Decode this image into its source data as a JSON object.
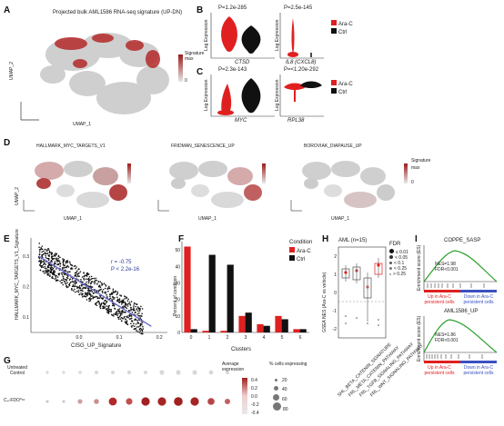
{
  "panels": {
    "A": {
      "letter": "A",
      "title": "Projected bulk AML1586 RNA-seq signature (UP-DN)",
      "xlabel": "UMAP_1",
      "ylabel": "UMAP_2",
      "legend_title": "Signature",
      "legend_max": "max",
      "legend_min": "0"
    },
    "B": {
      "letter": "B",
      "left": {
        "p": "P=1.2e-285",
        "gene": "CTSD",
        "ylabel": "Log Expression"
      },
      "right": {
        "p": "P=2.5e-145",
        "gene": "IL8 (CXCL8)",
        "ylabel": "Log Expression"
      },
      "legend": [
        "Ara-C",
        "Ctrl"
      ]
    },
    "C": {
      "letter": "C",
      "left": {
        "p": "P=2.3e-143",
        "gene": "MYC",
        "ylabel": "Log Expression"
      },
      "right": {
        "p": "P=<1.20e-292",
        "gene": "RPL38",
        "ylabel": "Log Expression"
      },
      "legend": [
        "Ara-C",
        "Ctrl"
      ]
    },
    "D": {
      "letter": "D",
      "maps": [
        "HALLMARK_MYC_TARGETS_V1",
        "FRIDMAN_SENESCENCE_UP",
        "BOROVIAK_DIAPAUSE_UP"
      ],
      "xlabel": "UMAP_1",
      "ylabel": "UMAP_2",
      "legend_title": "Signature",
      "legend_max": "max",
      "legend_min": "0"
    },
    "E": {
      "letter": "E",
      "r": "r = -0.75",
      "p": "P < 2.2e-16",
      "xlabel": "CISG_UP_Signature",
      "ylabel": "HALLMARK_MYC_TARGETS_V1_Signature"
    },
    "F": {
      "letter": "F",
      "xlabel": "Clusters",
      "ylabel": "Percent of condition",
      "legend_title": "Condition"
    },
    "H": {
      "letter": "H",
      "subtitle": "AML (n=15)",
      "ylabel": "GSEA NES (Ara-C vs vehicle)",
      "fdr_title": "FDR",
      "fdr_levels": [
        "≤ 0.01",
        "< 0.05",
        "< 0.1",
        "< 0.25",
        "> 0.25"
      ],
      "categories": [
        "SHL_BETA_CATENIN_SIGNATURE",
        "FRL_META_CATENIN_PATHWAY",
        "FRL_TGFB_SIGNALING_PATHWAY",
        "FRL_WNT_SIGNALING_PATHWAY"
      ]
    },
    "I": {
      "letter": "I",
      "top": {
        "title": "COPPE_SASP",
        "nes": "NES=1.98",
        "fdr": "FDR<0.001",
        "left_label": "Up in Ara-C persistent cells",
        "right_label": "Down in Ara-C persistent cells",
        "ylabel": "Enrichment score (ES)"
      },
      "bottom": {
        "title": "AML1586_UP",
        "nes": "NES=1.86",
        "fdr": "FDR<0.001",
        "left_label": "Up in Ara-C persistent cells",
        "right_label": "Down in Ara-C persistent cells",
        "ylabel": "Enrichment score (ES)"
      }
    },
    "G": {
      "letter": "G",
      "rows": [
        "Untreated Control",
        "C₄-FDO⁰ᶜᶜ"
      ],
      "avg_title": "Average expression",
      "avg_ticks": [
        "0.4",
        "0.2",
        "0.0",
        "-0.2",
        "-0.4"
      ],
      "pct_title": "% cells expressing",
      "pct_ticks": [
        "20",
        "40",
        "60",
        "80"
      ]
    }
  },
  "colors": {
    "arac": "#e02020",
    "ctrl": "#111111",
    "signature_high": "#9c1b1b",
    "signature_low": "#e8e8e8",
    "fit_line": "#6a6ac8"
  },
  "chart_data": [
    {
      "panel": "F",
      "type": "bar",
      "categories": [
        "0",
        "1",
        "2",
        "3",
        "4",
        "5",
        "6"
      ],
      "series": [
        {
          "name": "Ara-C",
          "values": [
            52,
            1,
            1,
            10,
            5,
            10,
            2
          ]
        },
        {
          "name": "Ctrl",
          "values": [
            2,
            47,
            41,
            12,
            4,
            8,
            2
          ]
        }
      ],
      "xlabel": "Clusters",
      "ylabel": "Percent of condition",
      "yticks": [
        "0",
        "10",
        "20",
        "30",
        "40",
        "50"
      ],
      "ylim": [
        0,
        55
      ],
      "legend": "top-right"
    },
    {
      "panel": "E",
      "type": "scatter",
      "xticks": [
        "0.0",
        "0.1",
        "0.2"
      ],
      "yticks": [
        "0.1",
        "0.2",
        "0.3"
      ],
      "xlim": [
        -0.12,
        0.22
      ],
      "ylim": [
        0.05,
        0.36
      ],
      "fit": {
        "x": [
          -0.1,
          0.18
        ],
        "y": [
          0.3,
          0.07
        ]
      }
    },
    {
      "panel": "H",
      "type": "box",
      "yticks": [
        "2",
        "1",
        "0",
        "-1",
        "-2"
      ],
      "ylim": [
        -2.5,
        2.5
      ]
    }
  ]
}
